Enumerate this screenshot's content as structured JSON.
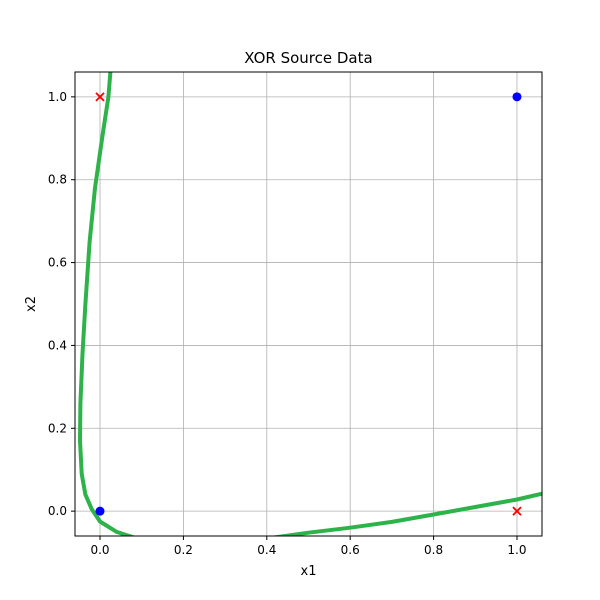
{
  "chart_data": {
    "type": "scatter",
    "title": "XOR Source Data",
    "xlabel": "x1",
    "ylabel": "x2",
    "xlim": [
      -0.06,
      1.06
    ],
    "ylim": [
      -0.06,
      1.06
    ],
    "xticks": [
      "0.0",
      "0.2",
      "0.4",
      "0.6",
      "0.8",
      "1.0"
    ],
    "yticks": [
      "0.0",
      "0.2",
      "0.4",
      "0.6",
      "0.8",
      "1.0"
    ],
    "grid": true,
    "series": [
      {
        "marker": "circle",
        "color": "#0000ff",
        "points": [
          [
            0,
            0
          ],
          [
            1,
            1
          ]
        ]
      },
      {
        "marker": "x",
        "color": "#ff0000",
        "points": [
          [
            0,
            1
          ],
          [
            1,
            0
          ]
        ]
      }
    ],
    "decision_boundary": {
      "color": "#2db34a",
      "points": [
        [
          0.025,
          1.06
        ],
        [
          0.02,
          1.0
        ],
        [
          0.005,
          0.9
        ],
        [
          -0.012,
          0.78
        ],
        [
          -0.025,
          0.65
        ],
        [
          -0.035,
          0.5
        ],
        [
          -0.042,
          0.38
        ],
        [
          -0.047,
          0.26
        ],
        [
          -0.048,
          0.17
        ],
        [
          -0.044,
          0.09
        ],
        [
          -0.035,
          0.04
        ],
        [
          -0.02,
          0.005
        ],
        [
          0.0,
          -0.025
        ],
        [
          0.04,
          -0.05
        ],
        [
          0.1,
          -0.07
        ],
        [
          0.2,
          -0.08
        ],
        [
          0.3,
          -0.078
        ],
        [
          0.4,
          -0.066
        ],
        [
          0.5,
          -0.052
        ],
        [
          0.6,
          -0.04
        ],
        [
          0.7,
          -0.026
        ],
        [
          0.8,
          -0.008
        ],
        [
          0.9,
          0.01
        ],
        [
          1.0,
          0.028
        ],
        [
          1.06,
          0.042
        ]
      ]
    }
  }
}
